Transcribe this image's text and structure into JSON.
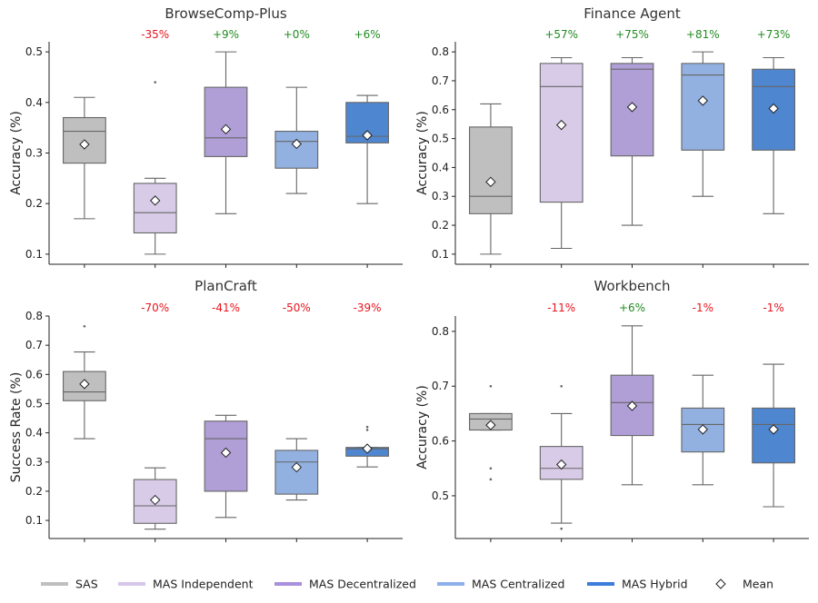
{
  "legend": {
    "items": [
      {
        "label": "SAS",
        "color": "#bfbfbf"
      },
      {
        "label": "MAS Independent",
        "color": "#d6c6ea"
      },
      {
        "label": "MAS Decentralized",
        "color": "#a98fdc"
      },
      {
        "label": "MAS Centralized",
        "color": "#8db0ea"
      },
      {
        "label": "MAS Hybrid",
        "color": "#3c7ddc"
      }
    ],
    "mean_label": "Mean",
    "placement": "bottom"
  },
  "box_colors": [
    "#bfbfbf",
    "#d8cbe8",
    "#b09fd6",
    "#92b1e0",
    "#4f86d0"
  ],
  "annotation_colors": {
    "positive": "#228b22",
    "negative": "#e8141e"
  },
  "chart_data": [
    {
      "type": "box",
      "title": "BrowseComp-Plus",
      "ylabel": "Accuracy (%)",
      "ylim": [
        0.08,
        0.52
      ],
      "yticks": [
        0.1,
        0.2,
        0.3,
        0.4,
        0.5
      ],
      "categories": [
        "SAS",
        "MAS Independent",
        "MAS Decentralized",
        "MAS Centralized",
        "MAS Hybrid"
      ],
      "annotations": [
        "",
        "-35%",
        "+9%",
        "+0%",
        "+6%"
      ],
      "boxes": [
        {
          "whislo": 0.17,
          "q1": 0.28,
          "med": 0.343,
          "q3": 0.37,
          "whishi": 0.41,
          "mean": 0.317,
          "fliers": []
        },
        {
          "whislo": 0.1,
          "q1": 0.142,
          "med": 0.182,
          "q3": 0.24,
          "whishi": 0.25,
          "mean": 0.206,
          "fliers": [
            0.44
          ]
        },
        {
          "whislo": 0.18,
          "q1": 0.293,
          "med": 0.33,
          "q3": 0.43,
          "whishi": 0.5,
          "mean": 0.347,
          "fliers": []
        },
        {
          "whislo": 0.22,
          "q1": 0.27,
          "med": 0.323,
          "q3": 0.343,
          "whishi": 0.43,
          "mean": 0.318,
          "fliers": []
        },
        {
          "whislo": 0.2,
          "q1": 0.32,
          "med": 0.333,
          "q3": 0.4,
          "whishi": 0.414,
          "mean": 0.335,
          "fliers": []
        }
      ]
    },
    {
      "type": "box",
      "title": "Finance Agent",
      "ylabel": "Accuracy (%)",
      "ylim": [
        0.065,
        0.835
      ],
      "yticks": [
        0.1,
        0.2,
        0.3,
        0.4,
        0.5,
        0.6,
        0.7,
        0.8
      ],
      "categories": [
        "SAS",
        "MAS Independent",
        "MAS Decentralized",
        "MAS Centralized",
        "MAS Hybrid"
      ],
      "annotations": [
        "",
        "+57%",
        "+75%",
        "+81%",
        "+73%"
      ],
      "boxes": [
        {
          "whislo": 0.1,
          "q1": 0.24,
          "med": 0.3,
          "q3": 0.54,
          "whishi": 0.62,
          "mean": 0.35,
          "fliers": []
        },
        {
          "whislo": 0.12,
          "q1": 0.28,
          "med": 0.68,
          "q3": 0.76,
          "whishi": 0.78,
          "mean": 0.547,
          "fliers": []
        },
        {
          "whislo": 0.2,
          "q1": 0.44,
          "med": 0.74,
          "q3": 0.76,
          "whishi": 0.78,
          "mean": 0.609,
          "fliers": []
        },
        {
          "whislo": 0.3,
          "q1": 0.46,
          "med": 0.72,
          "q3": 0.76,
          "whishi": 0.8,
          "mean": 0.631,
          "fliers": []
        },
        {
          "whislo": 0.24,
          "q1": 0.46,
          "med": 0.68,
          "q3": 0.74,
          "whishi": 0.78,
          "mean": 0.604,
          "fliers": []
        }
      ]
    },
    {
      "type": "box",
      "title": "PlanCraft",
      "ylabel": "Success Rate (%)",
      "ylim": [
        0.038,
        0.8
      ],
      "yticks": [
        0.1,
        0.2,
        0.3,
        0.4,
        0.5,
        0.6,
        0.7,
        0.8
      ],
      "categories": [
        "SAS",
        "MAS Independent",
        "MAS Decentralized",
        "MAS Centralized",
        "MAS Hybrid"
      ],
      "annotations": [
        "",
        "-70%",
        "-41%",
        "-50%",
        "-39%"
      ],
      "boxes": [
        {
          "whislo": 0.38,
          "q1": 0.51,
          "med": 0.54,
          "q3": 0.61,
          "whishi": 0.677,
          "mean": 0.567,
          "fliers": [
            0.765
          ]
        },
        {
          "whislo": 0.07,
          "q1": 0.09,
          "med": 0.15,
          "q3": 0.24,
          "whishi": 0.28,
          "mean": 0.17,
          "fliers": []
        },
        {
          "whislo": 0.11,
          "q1": 0.2,
          "med": 0.38,
          "q3": 0.44,
          "whishi": 0.46,
          "mean": 0.332,
          "fliers": []
        },
        {
          "whislo": 0.17,
          "q1": 0.19,
          "med": 0.3,
          "q3": 0.34,
          "whishi": 0.38,
          "mean": 0.282,
          "fliers": []
        },
        {
          "whislo": 0.283,
          "q1": 0.32,
          "med": 0.345,
          "q3": 0.35,
          "whishi": 0.35,
          "mean": 0.346,
          "fliers": [
            0.41,
            0.42
          ]
        }
      ]
    },
    {
      "type": "box",
      "title": "Workbench",
      "ylabel": "Accuracy (%)",
      "ylim": [
        0.422,
        0.828
      ],
      "yticks": [
        0.5,
        0.6,
        0.7,
        0.8
      ],
      "categories": [
        "SAS",
        "MAS Independent",
        "MAS Decentralized",
        "MAS Centralized",
        "MAS Hybrid"
      ],
      "annotations": [
        "",
        "-11%",
        "+6%",
        "-1%",
        "-1%"
      ],
      "boxes": [
        {
          "whislo": 0.62,
          "q1": 0.62,
          "med": 0.64,
          "q3": 0.65,
          "whishi": 0.65,
          "mean": 0.629,
          "fliers": [
            0.7,
            0.55,
            0.53
          ]
        },
        {
          "whislo": 0.45,
          "q1": 0.53,
          "med": 0.55,
          "q3": 0.59,
          "whishi": 0.65,
          "mean": 0.557,
          "fliers": [
            0.7,
            0.44
          ]
        },
        {
          "whislo": 0.52,
          "q1": 0.61,
          "med": 0.67,
          "q3": 0.72,
          "whishi": 0.81,
          "mean": 0.664,
          "fliers": []
        },
        {
          "whislo": 0.52,
          "q1": 0.58,
          "med": 0.63,
          "q3": 0.66,
          "whishi": 0.72,
          "mean": 0.621,
          "fliers": []
        },
        {
          "whislo": 0.48,
          "q1": 0.56,
          "med": 0.63,
          "q3": 0.66,
          "whishi": 0.74,
          "mean": 0.621,
          "fliers": []
        }
      ]
    }
  ]
}
